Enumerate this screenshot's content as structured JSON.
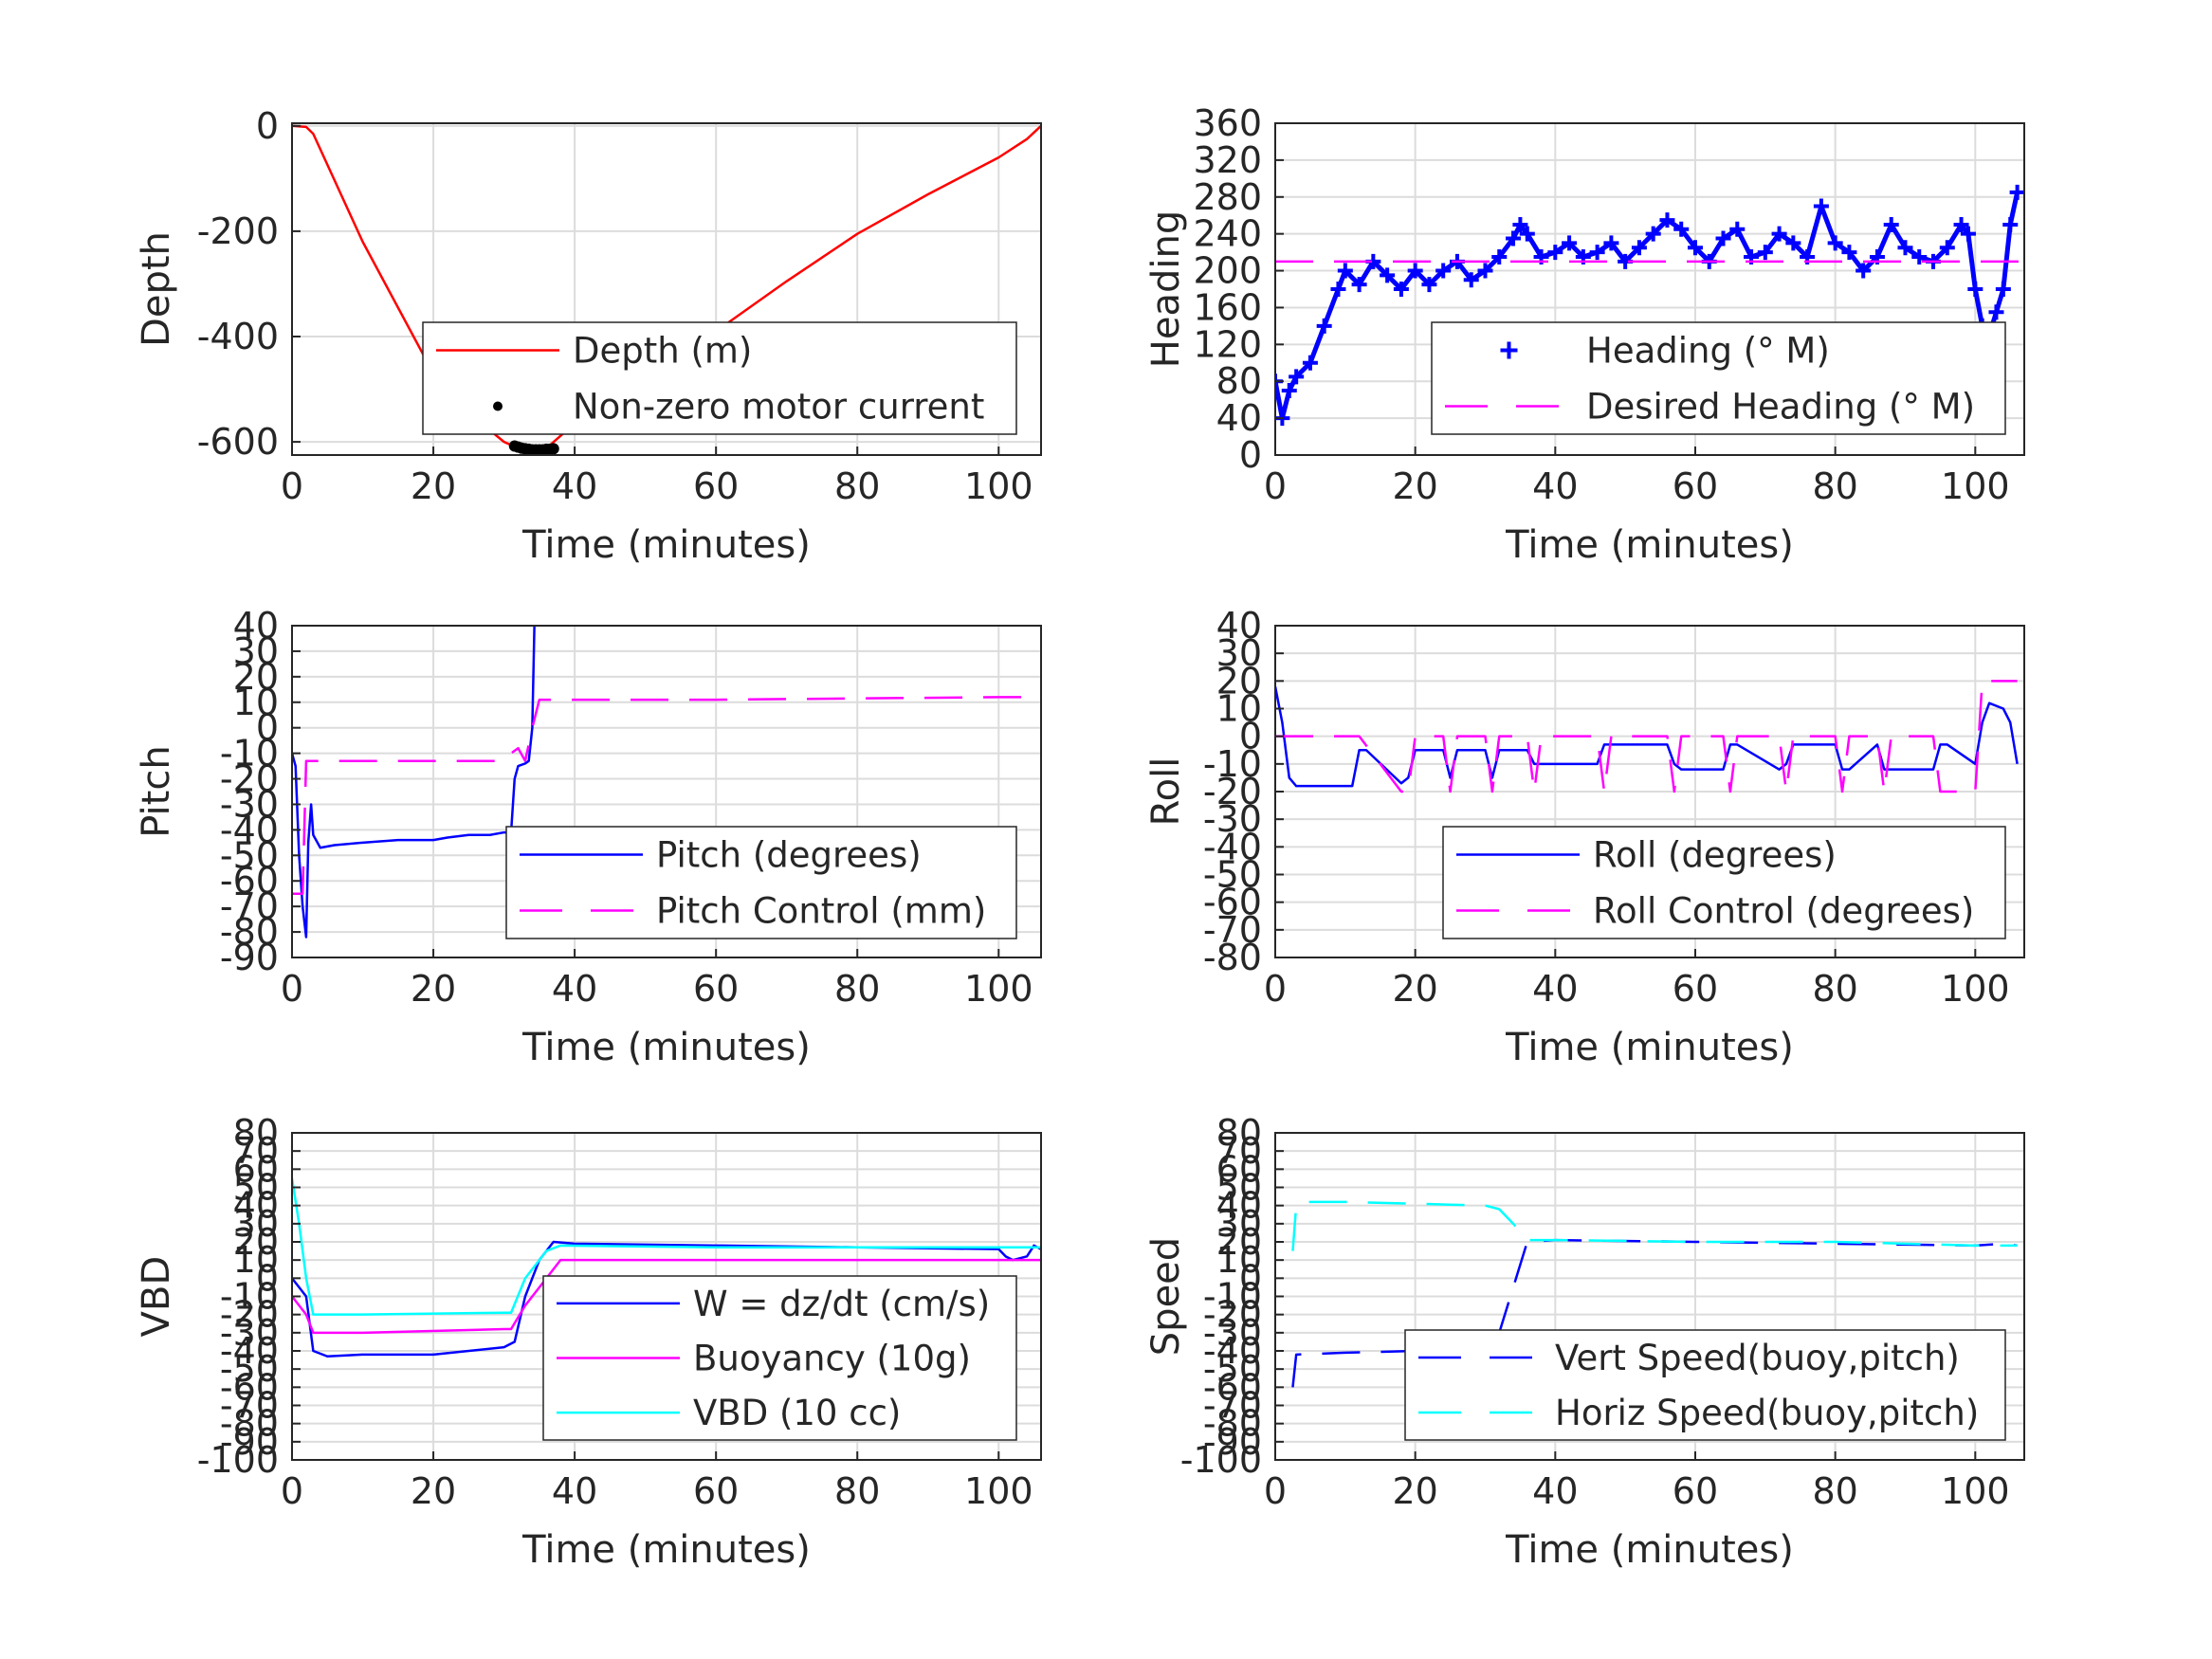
{
  "colors": {
    "depth": "#ff0000",
    "motor": "#000000",
    "measured": "#0000ff",
    "desired": "#ff00ff",
    "buoyancy": "#ff00ff",
    "vbd": "#00ffff",
    "vert_speed": "#0000ff",
    "horiz_speed": "#00ffff",
    "grid": "#dcdcdc",
    "axes": "#262626"
  },
  "chart_data": [
    {
      "id": "depth",
      "type": "line",
      "xlabel": "Time (minutes)",
      "ylabel": "Depth",
      "xlim": [
        0,
        106
      ],
      "ylim": [
        -625,
        5
      ],
      "xticks": [
        0,
        20,
        40,
        60,
        80,
        100
      ],
      "yticks": [
        -600,
        -400,
        -200,
        0
      ],
      "legend_position": "bottom-right",
      "series": [
        {
          "name": "Depth (m)",
          "style": "solid",
          "color_key": "depth",
          "x": [
            0,
            2,
            3,
            10,
            20,
            25,
            30,
            32,
            34,
            36,
            40,
            50,
            60,
            70,
            80,
            90,
            100,
            104,
            106
          ],
          "y": [
            0,
            -2,
            -15,
            -220,
            -470,
            -545,
            -600,
            -612,
            -615,
            -612,
            -565,
            -480,
            -390,
            -295,
            -205,
            -130,
            -60,
            -25,
            0
          ]
        },
        {
          "name": "Non-zero motor current",
          "style": "dots",
          "color_key": "motor",
          "x": [
            31.5,
            32,
            32.5,
            33,
            33.5,
            34,
            34.5,
            35,
            35.5,
            36,
            36.5,
            37
          ],
          "y": [
            -608,
            -610,
            -612,
            -613,
            -614,
            -615,
            -615,
            -615,
            -615,
            -614,
            -614,
            -613
          ]
        }
      ]
    },
    {
      "id": "heading",
      "type": "line",
      "xlabel": "Time (minutes)",
      "ylabel": "Heading",
      "xlim": [
        0,
        107
      ],
      "ylim": [
        0,
        360
      ],
      "xticks": [
        0,
        20,
        40,
        60,
        80,
        100
      ],
      "yticks": [
        0,
        40,
        80,
        120,
        160,
        200,
        240,
        280,
        320,
        360
      ],
      "legend_position": "bottom-right",
      "series": [
        {
          "name": "Heading (° M)",
          "style": "plus",
          "color_key": "measured",
          "x": [
            0,
            1,
            2,
            3,
            5,
            7,
            9,
            10,
            12,
            14,
            16,
            18,
            20,
            22,
            24,
            26,
            28,
            30,
            32,
            34,
            35,
            36,
            38,
            40,
            42,
            44,
            46,
            48,
            50,
            52,
            54,
            56,
            58,
            60,
            62,
            64,
            66,
            68,
            70,
            72,
            74,
            76,
            78,
            80,
            82,
            84,
            86,
            88,
            90,
            92,
            94,
            96,
            98,
            99,
            100,
            101,
            102,
            103,
            104,
            105,
            106
          ],
          "y": [
            80,
            40,
            70,
            85,
            100,
            140,
            180,
            200,
            185,
            210,
            195,
            180,
            200,
            185,
            200,
            210,
            190,
            200,
            215,
            235,
            250,
            240,
            215,
            220,
            230,
            215,
            220,
            230,
            210,
            225,
            240,
            255,
            245,
            225,
            210,
            235,
            245,
            215,
            220,
            240,
            230,
            215,
            270,
            230,
            220,
            200,
            215,
            250,
            225,
            215,
            210,
            225,
            250,
            240,
            180,
            140,
            130,
            155,
            180,
            250,
            285
          ]
        },
        {
          "name": "Desired Heading (° M)",
          "style": "dashed",
          "color_key": "desired",
          "x": [
            0,
            107
          ],
          "y": [
            210,
            210
          ]
        }
      ]
    },
    {
      "id": "pitch",
      "type": "line",
      "xlabel": "Time (minutes)",
      "ylabel": "Pitch",
      "xlim": [
        0,
        106
      ],
      "ylim": [
        -90,
        40
      ],
      "xticks": [
        0,
        20,
        40,
        60,
        80,
        100
      ],
      "yticks": [
        -90,
        -80,
        -70,
        -60,
        -50,
        -40,
        -30,
        -20,
        -10,
        0,
        10,
        20,
        30,
        40
      ],
      "legend_position": "bottom-right",
      "series": [
        {
          "name": "Pitch (degrees)",
          "style": "solid",
          "color_key": "measured",
          "x": [
            0,
            0.5,
            1,
            1.5,
            2,
            2.3,
            2.7,
            3,
            4,
            6,
            10,
            15,
            20,
            22,
            25,
            28,
            30,
            31,
            31.5,
            32,
            33,
            33.5,
            34,
            34.3
          ],
          "y": [
            -10,
            -15,
            -50,
            -70,
            -82,
            -45,
            -30,
            -42,
            -47,
            -46,
            -45,
            -44,
            -44,
            -43,
            -42,
            -42,
            -41,
            -41,
            -20,
            -15,
            -14,
            -13,
            0,
            40
          ]
        },
        {
          "name": "Pitch Control (mm)",
          "style": "dashed",
          "color_key": "desired",
          "x": [
            0,
            1.5,
            2,
            2.5,
            10,
            20,
            30,
            31,
            32,
            33,
            34,
            35,
            60,
            100,
            106
          ],
          "y": [
            -65,
            -65,
            -13,
            -13,
            -13,
            -13,
            -13,
            -10,
            -8,
            -13,
            0,
            11,
            11,
            12,
            12
          ]
        }
      ]
    },
    {
      "id": "roll",
      "type": "line",
      "xlabel": "Time (minutes)",
      "ylabel": "Roll",
      "xlim": [
        0,
        107
      ],
      "ylim": [
        -80,
        40
      ],
      "xticks": [
        0,
        20,
        40,
        60,
        80,
        100
      ],
      "yticks": [
        -80,
        -70,
        -60,
        -50,
        -40,
        -30,
        -20,
        -10,
        0,
        10,
        20,
        30,
        40
      ],
      "legend_position": "bottom-right",
      "series": [
        {
          "name": "Roll (degrees)",
          "style": "solid",
          "color_key": "measured",
          "x": [
            0,
            1,
            2,
            3,
            5,
            11,
            12,
            13,
            18,
            19,
            20,
            24,
            25,
            26,
            30,
            31,
            32,
            36,
            37,
            38,
            46,
            47,
            48,
            56,
            57,
            58,
            64,
            65,
            66,
            72,
            73,
            74,
            80,
            81,
            82,
            86,
            87,
            88,
            94,
            95,
            96,
            100,
            101,
            102,
            104,
            105,
            106
          ],
          "y": [
            18,
            5,
            -15,
            -18,
            -18,
            -18,
            -5,
            -5,
            -17,
            -15,
            -5,
            -5,
            -15,
            -5,
            -5,
            -15,
            -5,
            -5,
            -10,
            -10,
            -10,
            -3,
            -3,
            -3,
            -10,
            -12,
            -12,
            -3,
            -3,
            -12,
            -10,
            -3,
            -3,
            -12,
            -12,
            -3,
            -12,
            -12,
            -12,
            -3,
            -3,
            -10,
            5,
            12,
            10,
            5,
            -10
          ]
        },
        {
          "name": "Roll Control (degrees)",
          "style": "dashed",
          "color_key": "desired",
          "x": [
            0,
            11,
            12,
            18,
            19,
            20,
            24,
            25,
            26,
            30,
            31,
            32,
            36,
            37,
            38,
            46,
            47,
            48,
            56,
            57,
            58,
            64,
            65,
            66,
            72,
            73,
            74,
            80,
            81,
            82,
            86,
            87,
            88,
            94,
            95,
            100,
            101,
            104,
            106
          ],
          "y": [
            0,
            0,
            0,
            -20,
            -20,
            0,
            0,
            -20,
            0,
            0,
            -20,
            0,
            0,
            -20,
            0,
            0,
            -20,
            0,
            0,
            -20,
            0,
            0,
            -20,
            0,
            0,
            -20,
            0,
            0,
            -20,
            0,
            0,
            -20,
            0,
            0,
            -20,
            -20,
            20,
            20,
            20
          ]
        }
      ]
    },
    {
      "id": "vbd",
      "type": "line",
      "xlabel": "Time (minutes)",
      "ylabel": "VBD",
      "xlim": [
        0,
        106
      ],
      "ylim": [
        -100,
        80
      ],
      "xticks": [
        0,
        20,
        40,
        60,
        80,
        100
      ],
      "yticks": [
        -100,
        -90,
        -80,
        -70,
        -60,
        -50,
        -40,
        -30,
        -20,
        -10,
        0,
        10,
        20,
        30,
        40,
        50,
        60,
        70,
        80
      ],
      "legend_position": "bottom-right",
      "series": [
        {
          "name": "W = dz/dt (cm/s)",
          "style": "solid",
          "color_key": "measured",
          "x": [
            0,
            1,
            2,
            3,
            5,
            10,
            20,
            30,
            31.5,
            33,
            35,
            37,
            40,
            60,
            80,
            100,
            101,
            102,
            104,
            105,
            106
          ],
          "y": [
            0,
            -5,
            -10,
            -40,
            -43,
            -42,
            -42,
            -38,
            -35,
            -10,
            10,
            20,
            19,
            18,
            17,
            16,
            12,
            10,
            12,
            18,
            16
          ]
        },
        {
          "name": "Buoyancy (10g)",
          "style": "solid",
          "color_key": "buoyancy",
          "x": [
            0,
            2,
            3,
            10,
            30,
            31,
            33,
            36,
            38,
            60,
            100,
            106
          ],
          "y": [
            -10,
            -20,
            -30,
            -30,
            -28,
            -28,
            -15,
            0,
            10,
            10,
            10,
            10
          ]
        },
        {
          "name": "VBD (10 cc)",
          "style": "solid",
          "color_key": "vbd",
          "x": [
            0,
            1,
            2,
            3,
            10,
            30,
            31,
            33,
            36,
            38,
            60,
            100,
            106
          ],
          "y": [
            55,
            30,
            0,
            -20,
            -20,
            -19,
            -19,
            0,
            15,
            18,
            17,
            17,
            17
          ]
        }
      ]
    },
    {
      "id": "speed",
      "type": "line",
      "xlabel": "Time (minutes)",
      "ylabel": "Speed",
      "xlim": [
        0,
        107
      ],
      "ylim": [
        -100,
        80
      ],
      "xticks": [
        0,
        20,
        40,
        60,
        80,
        100
      ],
      "yticks": [
        -100,
        -90,
        -80,
        -70,
        -60,
        -50,
        -40,
        -30,
        -20,
        -10,
        0,
        10,
        20,
        30,
        40,
        50,
        60,
        70,
        80
      ],
      "legend_position": "bottom-right",
      "series": [
        {
          "name": "Vert Speed(buoy,pitch)",
          "style": "dashed",
          "color_key": "vert_speed",
          "x": [
            2.5,
            3,
            10,
            20,
            30,
            32,
            34,
            36,
            40,
            60,
            80,
            100,
            104,
            106
          ],
          "y": [
            -60,
            -42,
            -41,
            -40,
            -37,
            -30,
            -5,
            20,
            21,
            20,
            19,
            18,
            19,
            18
          ]
        },
        {
          "name": "Horiz Speed(buoy,pitch)",
          "style": "dashed",
          "color_key": "horiz_speed",
          "x": [
            2.5,
            3,
            5,
            10,
            20,
            30,
            32,
            34,
            36,
            40,
            60,
            80,
            100,
            106
          ],
          "y": [
            15,
            40,
            42,
            42,
            41,
            40,
            38,
            30,
            21,
            21,
            20,
            20,
            18,
            18
          ]
        }
      ]
    }
  ]
}
